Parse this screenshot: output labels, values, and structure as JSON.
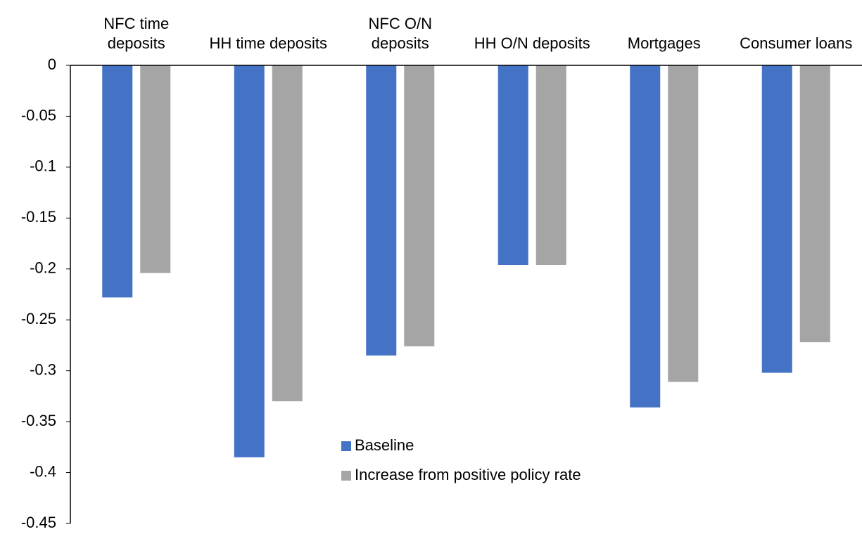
{
  "chart_data": {
    "type": "bar",
    "categories": [
      "NFC time deposits",
      "HH time deposits",
      "NFC O/N deposits",
      "HH O/N deposits",
      "Mortgages",
      "Consumer loans"
    ],
    "series": [
      {
        "name": "Baseline",
        "color": "#4472c4",
        "values": [
          -0.228,
          -0.385,
          -0.285,
          -0.196,
          -0.336,
          -0.302
        ]
      },
      {
        "name": "Increase from positive policy rate",
        "color": "#a5a5a5",
        "values": [
          -0.204,
          -0.33,
          -0.276,
          -0.196,
          -0.311,
          -0.272
        ]
      }
    ],
    "ylim": [
      -0.45,
      0
    ],
    "yticks": [
      0,
      -0.05,
      -0.1,
      -0.15,
      -0.2,
      -0.25,
      -0.3,
      -0.35,
      -0.4,
      -0.45
    ],
    "grid": false
  }
}
